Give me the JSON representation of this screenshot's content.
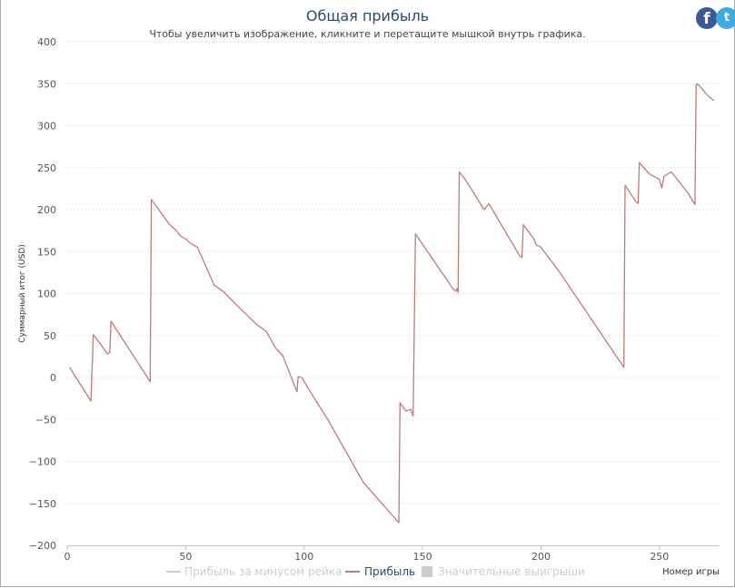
{
  "title": "Общая прибыль",
  "subtitle": "Чтобы увеличить изображение, кликните и перетащите мышкой внутрь графика.",
  "social": {
    "facebook_icon": "facebook-icon",
    "twitter_icon": "twitter-icon"
  },
  "colors": {
    "line": "#c07a76",
    "muted": "#cccccc",
    "title": "#274b6d"
  },
  "chart_data": {
    "type": "line",
    "title": "Общая прибыль",
    "ylabel": "Суммарный итог (USD)",
    "xlabel": "Номер игры",
    "xlim": [
      0,
      275
    ],
    "ylim": [
      -200,
      400
    ],
    "x_ticks": [
      0,
      50,
      100,
      150,
      200,
      250
    ],
    "y_ticks": [
      -200,
      -150,
      -100,
      -50,
      0,
      50,
      100,
      150,
      200,
      250,
      300,
      350,
      400
    ],
    "grid": "horizontal dotted",
    "legend_position": "bottom",
    "legend": [
      {
        "label": "Прибыль за минусом рейка",
        "state": "hidden"
      },
      {
        "label": "Прибыль",
        "state": "visible"
      },
      {
        "label": "Значительные выигрыши",
        "state": "hidden"
      }
    ],
    "series": [
      {
        "name": "Прибыль",
        "points": [
          [
            1,
            12
          ],
          [
            10,
            -28
          ],
          [
            11,
            51
          ],
          [
            14,
            40
          ],
          [
            17,
            28
          ],
          [
            18,
            30
          ],
          [
            18.5,
            67
          ],
          [
            35,
            -5
          ],
          [
            35.5,
            212
          ],
          [
            43,
            183
          ],
          [
            46,
            175
          ],
          [
            48,
            168
          ],
          [
            50,
            165
          ],
          [
            52,
            160
          ],
          [
            55,
            155
          ],
          [
            62,
            110
          ],
          [
            66,
            102
          ],
          [
            72,
            85
          ],
          [
            80,
            63
          ],
          [
            84,
            55
          ],
          [
            88,
            35
          ],
          [
            91,
            26
          ],
          [
            96,
            -10
          ],
          [
            97,
            -17
          ],
          [
            97.5,
            1
          ],
          [
            99,
            0
          ],
          [
            105,
            -28
          ],
          [
            110,
            -50
          ],
          [
            125,
            -125
          ],
          [
            140,
            -173
          ],
          [
            140.5,
            -30
          ],
          [
            143,
            -40
          ],
          [
            145,
            -38
          ],
          [
            146,
            -46
          ],
          [
            147,
            171
          ],
          [
            163,
            105
          ],
          [
            164,
            103
          ],
          [
            164.5,
            106
          ],
          [
            165,
            101
          ],
          [
            165.5,
            245
          ],
          [
            168,
            236
          ],
          [
            176,
            200
          ],
          [
            178,
            207
          ],
          [
            191,
            145
          ],
          [
            192,
            143
          ],
          [
            192.5,
            182
          ],
          [
            197,
            165
          ],
          [
            198,
            158
          ],
          [
            200,
            155
          ],
          [
            208,
            125
          ],
          [
            235,
            12
          ],
          [
            235.5,
            229
          ],
          [
            240,
            210
          ],
          [
            241,
            207
          ],
          [
            241.5,
            256
          ],
          [
            244,
            248
          ],
          [
            246,
            242
          ],
          [
            250,
            236
          ],
          [
            251,
            226
          ],
          [
            252,
            240
          ],
          [
            255,
            245
          ],
          [
            262,
            220
          ],
          [
            265,
            206
          ],
          [
            265.5,
            348
          ],
          [
            266,
            350
          ],
          [
            268,
            344
          ],
          [
            270,
            337
          ],
          [
            272,
            332
          ],
          [
            273,
            330
          ]
        ]
      }
    ]
  }
}
